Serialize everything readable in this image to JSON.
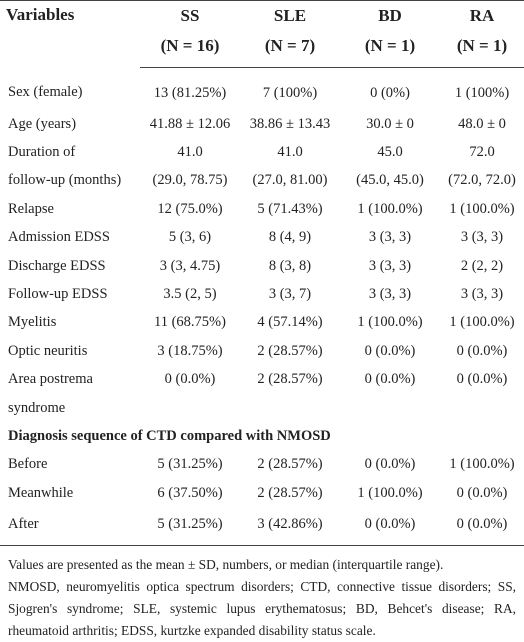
{
  "table": {
    "header": {
      "label": "Variables",
      "columns": [
        {
          "name": "SS",
          "n": "(N = 16)"
        },
        {
          "name": "SLE",
          "n": "(N = 7)"
        },
        {
          "name": "BD",
          "n": "(N = 1)"
        },
        {
          "name": "RA",
          "n": "(N = 1)"
        }
      ]
    },
    "rows": [
      [
        "Sex (female)",
        "13 (81.25%)",
        "7 (100%)",
        "0 (0%)",
        "1 (100%)"
      ],
      [
        "Age (years)",
        "41.88 ± 12.06",
        "38.86 ± 13.43",
        "30.0 ± 0",
        "48.0 ± 0"
      ],
      [
        "Duration of",
        "41.0",
        "41.0",
        "45.0",
        "72.0"
      ],
      [
        "follow-up (months)",
        "(29.0, 78.75)",
        "(27.0, 81.00)",
        "(45.0, 45.0)",
        "(72.0, 72.0)"
      ],
      [
        "Relapse",
        "12 (75.0%)",
        "5 (71.43%)",
        "1 (100.0%)",
        "1 (100.0%)"
      ],
      [
        "Admission EDSS",
        "5 (3, 6)",
        "8 (4, 9)",
        "3 (3, 3)",
        "3 (3, 3)"
      ],
      [
        "Discharge EDSS",
        "3 (3, 4.75)",
        "8 (3, 8)",
        "3 (3, 3)",
        "2 (2, 2)"
      ],
      [
        "Follow-up EDSS",
        "3.5 (2, 5)",
        "3 (3, 7)",
        "3 (3, 3)",
        "3 (3, 3)"
      ],
      [
        "Myelitis",
        "11 (68.75%)",
        "4 (57.14%)",
        "1 (100.0%)",
        "1 (100.0%)"
      ],
      [
        "Optic neuritis",
        "3 (18.75%)",
        "2 (28.57%)",
        "0 (0.0%)",
        "0 (0.0%)"
      ],
      [
        "Area postrema",
        "0 (0.0%)",
        "2 (28.57%)",
        "0 (0.0%)",
        "0 (0.0%)"
      ],
      [
        "syndrome"
      ],
      [
        "Diagnosis sequence of CTD compared with NMOSD"
      ],
      [
        "Before",
        "5 (31.25%)",
        "2 (28.57%)",
        "0 (0.0%)",
        "1 (100.0%)"
      ],
      [
        "Meanwhile",
        "6 (37.50%)",
        "2 (28.57%)",
        "1 (100.0%)",
        "0 (0.0%)"
      ],
      [
        "After",
        "5 (31.25%)",
        "3 (42.86%)",
        "0 (0.0%)",
        "0 (0.0%)"
      ]
    ],
    "section_rows": [
      12
    ]
  },
  "notes": [
    "Values are presented as the mean ± SD, numbers, or median (interquartile range).",
    "NMOSD, neuromyelitis optica spectrum disorders; CTD, connective tissue disorders; SS, Sjogren's syndrome; SLE, systemic lupus erythematosus; BD, Behcet's disease; RA, rheumatoid arthritis; EDSS, kurtzke expanded disability status scale."
  ]
}
